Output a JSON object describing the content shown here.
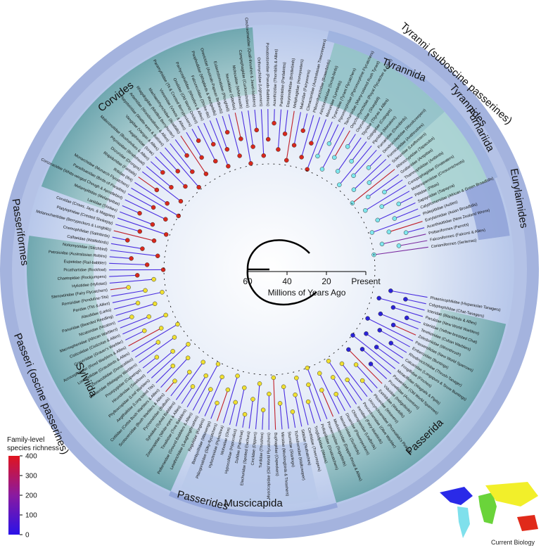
{
  "title_axis": {
    "label": "Millions of Years Ago",
    "ticks": [
      60,
      40,
      20,
      {
        "value": 0,
        "label": "Present"
      }
    ],
    "lim": [
      60,
      0
    ]
  },
  "legend": {
    "title_lines": [
      "Family-level",
      "species richness"
    ],
    "ticks": [
      0,
      100,
      200,
      300,
      400
    ],
    "lim": [
      0,
      400
    ]
  },
  "credit": "Current Biology",
  "clades": [
    "Passeriformes",
    "Passeri (oscine passerines)",
    "Corvides",
    "Sylviida",
    "Passerides",
    "Muscicapida",
    "Passerida",
    "Tyranni (suboscine passerines)",
    "Tyrannides",
    "Tyrannida",
    "Furnariida",
    "Eurylaimides"
  ],
  "tips": [
    "Cariamiformes (Seriemas)",
    "Falconiformes (Falcons & Allies)",
    "Psittaciformes (Parrots)",
    "Acanthisittidae (New Zealand Wrens)",
    "Eurylaimidae (Asian Broadbills)",
    "Philepittidae (Asities)",
    "Calyptomenidae (African & Green Broadbills)",
    "Sapayoidae (Sapayoa)",
    "Pittidae (Pittas)",
    "Melanopareiidae (Crescentchests)",
    "Conopophagidae (Gnateaters)",
    "Thamnophilidae (Antbirds)",
    "Grallariidae (Antpittas)",
    "Rhinocryptidae (Tapaculos)",
    "Scleruridae (Leaftossers)",
    "Formicariidae (Antthrushes)",
    "Dendrocolaptidae (Woodcreepers)",
    "Furnariidae (Ovenbirds)",
    "Pipridae (Manakins)",
    "Cotingidae (Cotingas)",
    "Tityridae (Tityras & Allies)",
    "Oxyruncidae (Sharpbill)",
    "Onychorhynchidae (Royal Flycatcher & Allies)",
    "Tachurisidae (Many-colored Rush Tyrant)",
    "Pipromorphidae (Pipromorphine Flycatchers)",
    "Tyrannidae (Tyrant Flycatchers)",
    "Menuridae (Lyrebirds)",
    "Atrichornithidae (Scrub-birds)",
    "Ptilonorhynchidae (Bowerbirds)",
    "Climacteridae (Australasian Treecreepers)",
    "Maluridae (Fairywrens)",
    "Meliphagidae (Honeyeaters)",
    "Dasyornithidae (Bristlebirds)",
    "Pardalotidae (Pardalotes)",
    "Acanthizidae (Thornbills & Allies)",
    "Pomatostomidae (Pseudo-Babblers)",
    "Orthonychidae (Logrunners)",
    "Cinclosomatidae (Quail-thrushes & Jewel-babblers)",
    "Campephagidae (Cuckooshrikes)",
    "Mohouidae (Whiteheads)",
    "Neosittidae (Sittellas)",
    "Eulacestomatidae (Ploughbill)",
    "Oreoicidae (Australo-Papuan Bellbirds)",
    "Psophodidae (Whipbirds & Wedgebills)",
    "Falcunculidae (Shrike-tits)",
    "Pachycephalidae (Whistlers & Allies)",
    "Oriolidae (Old World Orioles)",
    "Paramythiidae (Tit & Crested Berrypeckers)",
    "Vireonidae (Vireos & Allies)",
    "Machaerirhynchidae (Boatbills)",
    "Rhagologidae (Mottled Berryhunter)",
    "Artamidae (Woodswallows & Allies)",
    "Platysteiridae (Wattle-eyes & Batises)",
    "Vangidae (Vangas & Allies)",
    "Aegithinidae (Ioras)",
    "Malaconotidae (Bushshrikes & Allies)",
    "Pityriasidae (Bristlehead)",
    "Dicruridae (Drongos)",
    "Rhipiduridae (Fantails)",
    "Ifritidae (Ifrit)",
    "Monarchidae (Monarch Flycatchers)",
    "Paradisaeidae (Birds-of-Paradise)",
    "Corcoracidae (White-winged Chough & Apostlebird)",
    "Melampittidae (Melampittas)",
    "Laniidae (Shrikes)",
    "Corvidae (Crows, Jays, & Magpies)",
    "Platylophidae (Crested Shrikejay)",
    "Melanocharitidae (Berrypeckers & Longbills)",
    "Cnemophilidae (Satinbirds)",
    "Callaeidae (Wattlebirds)",
    "Notiomystidae (Stitchbird)",
    "Petroicidae (Australasian Robins)",
    "Eupetidae (Rail-babbler)",
    "Picathartidae (Rockfowl)",
    "Chaetopidae (Rockjumpers)",
    "Hyliotidae (Hyliotas)",
    "Stenostiridae (Fairy Flycatchers)",
    "Remizidae (Penduline-Tits)",
    "Paridae (Tits & Allies)",
    "Alaudidae (Larks)",
    "Panuridae (Bearded Reedling)",
    "Nicatoridae (Nicators)",
    "Macrosphenidae (African Warblers)",
    "Cisticolidae (Cisticolas & Allies)",
    "Graueriidae (Grauer's Warbler)",
    "Acrocephalidae (Reed Warblers & Allies)",
    "Locustellidae (Grassbirds & Allies)",
    "Donacobiidae (Donacobius)",
    "Bernieridae (Malagasy Warblers)",
    "Pnoepygidae (Cupwings)",
    "Hirundinidae (Swallows)",
    "Phylloscopidae (Leaf Warblers)",
    "Aegithalidae (Long-tailed Tits)",
    "Cettiidae (Cettia Bush Warblers & Allies)",
    "Scotocercidae (Bush Warblers & Allies)",
    "Pycnonotidae (Bulbuls)",
    "Sylviidae (Sylviid Babblers)",
    "Zosteropidae (White-eyes & Allies)",
    "Timaliidae (Tree Babblers)",
    "Pellorneidae (Ground Babblers & Allies)",
    "Leiothrichidae (Laughingthrushes)",
    "Regulidae (Kinglets)",
    "Bombycillidae (Waxwings)",
    "Ptiliogonatidae (Silky-flycatchers)",
    "Hylocitreidae (Hylocitrea)",
    "Mohoidae (Oos)",
    "Hypocoliidae (Hypocolius)",
    "Dulidae (Palmchat)",
    "Elachuridae (Spotted Elachura)",
    "Cinclidae (Dippers)",
    "Turdidae (Thrushes)",
    "Muscicapidae (Old World Flycatchers)",
    "Buphagidae (Oxpeckers)",
    "Mimidae (Mockingbirds & Thrashers)",
    "Sturnidae (Starlings)",
    "Tichodromidae (Wallcreeper)",
    "Sittidae (Nuthatches)",
    "Certhiidae (Treecreepers)",
    "Troglodytidae (Wrens)",
    "Polioptilidae (Gnatcatchers)",
    "Promeropidae (Sugarbirds)",
    "Modulatricidae (Dapple-throat & Allies)",
    "Nectariniidae (Sunbirds)",
    "Dicaeidae (Flowerpeckers)",
    "Chloropseidae (Leafbirds)",
    "Irenidae (Fairy-bluebirds)",
    "Peucedramidae (Olive Warbler)",
    "Urocynchramidae (Przevalski's Pinktail)",
    "Ploceidae (Weavers)",
    "Estrildidae (Waxbills)",
    "Viduidae (Indigobirds)",
    "Prunellidae (Accentors)",
    "Passeridae (Old World Sparrows)",
    "Motacillidae (Wagtails & Pipits)",
    "Fringillidae (Finches)",
    "Calcariidae (Longspurs & Snow Buntings)",
    "Rhodinocichlidae (Thrush-Tanager)",
    "Emberizidae (Buntings)",
    "Passerellidae (New World Sparrows)",
    "Zeledoniidae (Wrenthrush)",
    "Teretistridae (Cuban Warblers)",
    "Icteriidae (Yellow-breasted Chat)",
    "Parulidae (New World Warblers)",
    "Icteridae (Blackbirds & Allies)",
    "Calyptophilidae (Chat-Tanagers)",
    "Phaenicophilidae (Hispaniolan Tanagers)"
  ]
}
